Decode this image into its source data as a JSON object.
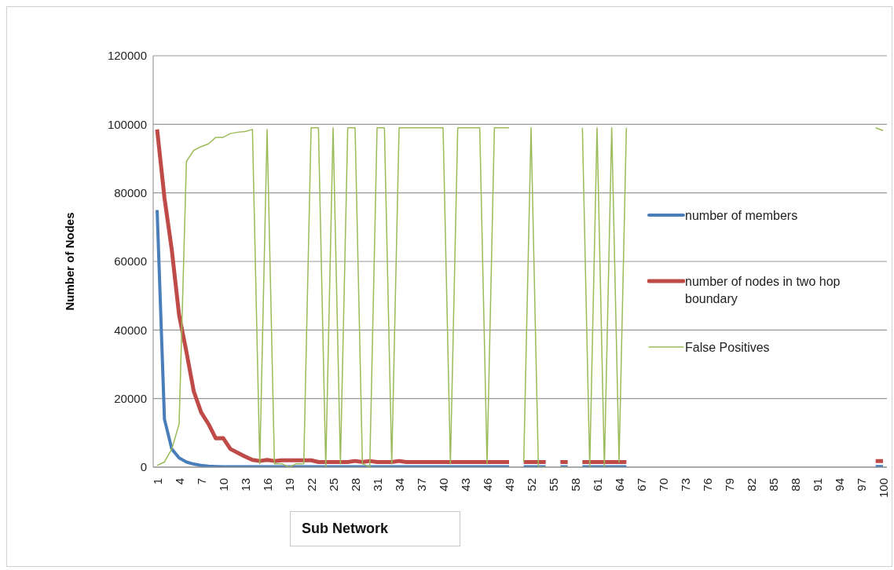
{
  "chart_data": {
    "type": "line",
    "xlabel": "Sub Network",
    "ylabel": "Number of Nodes",
    "ylim": [
      0,
      120000
    ],
    "yticks": [
      0,
      20000,
      40000,
      60000,
      80000,
      100000,
      120000
    ],
    "grid": "y",
    "legend": "right",
    "categories": [
      "1",
      null,
      null,
      "4",
      null,
      null,
      "7",
      null,
      null,
      "10",
      null,
      null,
      "13",
      null,
      null,
      "16",
      null,
      null,
      "19",
      null,
      null,
      "22",
      null,
      null,
      "25",
      null,
      null,
      "28",
      null,
      null,
      "31",
      null,
      null,
      "34",
      null,
      null,
      "37",
      null,
      null,
      "40",
      null,
      null,
      "43",
      null,
      null,
      "46",
      null,
      null,
      "49",
      null,
      null,
      "52",
      null,
      null,
      "55",
      null,
      null,
      "58",
      null,
      null,
      "61",
      null,
      null,
      "64",
      null,
      null,
      "67",
      null,
      null,
      "70",
      null,
      null,
      "73",
      null,
      null,
      "76",
      null,
      null,
      "79",
      null,
      null,
      "82",
      null,
      null,
      "85",
      null,
      null,
      "88",
      null,
      null,
      "91",
      null,
      null,
      "94",
      null,
      null,
      "97",
      null,
      null,
      "100"
    ],
    "series": [
      {
        "name": "number of members",
        "color": "#4a7ebb",
        "values": [
          75000,
          14000,
          5300,
          2700,
          1500,
          900,
          500,
          300,
          200,
          100,
          100,
          100,
          100,
          100,
          100,
          100,
          100,
          100,
          100,
          100,
          100,
          100,
          100,
          100,
          100,
          100,
          100,
          100,
          100,
          100,
          100,
          100,
          100,
          100,
          100,
          100,
          100,
          100,
          100,
          100,
          100,
          100,
          100,
          100,
          100,
          100,
          100,
          100,
          100,
          null,
          100,
          100,
          100,
          100,
          null,
          100,
          100,
          null,
          100,
          100,
          100,
          100,
          100,
          100,
          100,
          null,
          null,
          null,
          null,
          null,
          null,
          null,
          null,
          null,
          null,
          null,
          null,
          null,
          null,
          null,
          null,
          null,
          null,
          null,
          null,
          null,
          null,
          null,
          null,
          null,
          null,
          null,
          null,
          null,
          null,
          null,
          null,
          null,
          200,
          200
        ]
      },
      {
        "name": "number of nodes in two hop boundary",
        "color": "#be4b48",
        "values": [
          98500,
          78600,
          63400,
          44300,
          33600,
          22100,
          16000,
          12600,
          8400,
          8500,
          5300,
          4200,
          3100,
          2100,
          1800,
          2100,
          1800,
          2000,
          2000,
          2000,
          2000,
          2000,
          1500,
          1500,
          1500,
          1500,
          1500,
          1800,
          1500,
          1800,
          1500,
          1500,
          1500,
          1800,
          1500,
          1500,
          1500,
          1500,
          1500,
          1500,
          1500,
          1500,
          1500,
          1500,
          1500,
          1500,
          1500,
          1500,
          1500,
          null,
          1500,
          1500,
          1500,
          1500,
          null,
          1500,
          1500,
          null,
          1500,
          1500,
          1500,
          1500,
          1500,
          1500,
          1500,
          null,
          null,
          null,
          null,
          null,
          null,
          null,
          null,
          null,
          null,
          null,
          null,
          null,
          null,
          null,
          null,
          null,
          null,
          null,
          null,
          null,
          null,
          null,
          null,
          null,
          null,
          null,
          null,
          null,
          null,
          null,
          null,
          null,
          1800,
          1800
        ]
      },
      {
        "name": "False Positives",
        "color": "#9bbb59",
        "values": [
          500,
          1500,
          5300,
          12600,
          89200,
          92400,
          93500,
          94300,
          96200,
          96200,
          97300,
          97700,
          97900,
          98500,
          1000,
          98500,
          1000,
          1000,
          0,
          1000,
          1000,
          99000,
          99000,
          0,
          99000,
          1000,
          99000,
          99000,
          1000,
          0,
          99000,
          99000,
          1000,
          99000,
          99000,
          99000,
          99000,
          99000,
          99000,
          99000,
          1000,
          99000,
          99000,
          99000,
          99000,
          1000,
          99000,
          99000,
          99000,
          null,
          1500,
          99000,
          0,
          0,
          null,
          0,
          0,
          null,
          99000,
          0,
          99000,
          0,
          99000,
          1500,
          99000,
          null,
          null,
          null,
          null,
          null,
          null,
          null,
          null,
          null,
          null,
          null,
          null,
          null,
          null,
          null,
          null,
          null,
          null,
          null,
          null,
          null,
          null,
          null,
          null,
          null,
          null,
          null,
          null,
          null,
          null,
          null,
          null,
          null,
          99000,
          98200
        ]
      }
    ]
  }
}
